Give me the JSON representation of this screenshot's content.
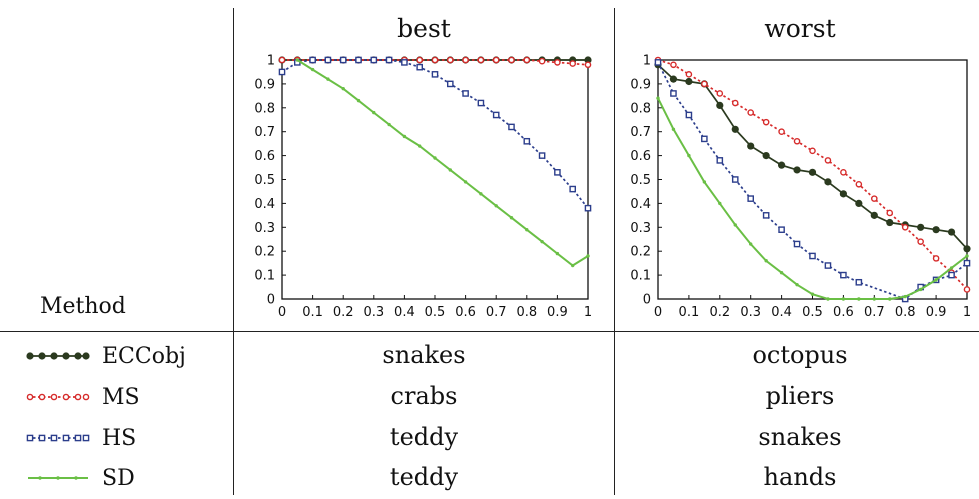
{
  "table": {
    "method_header": "Method",
    "columns": [
      "best",
      "worst"
    ],
    "rows": [
      {
        "method": "ECCobj",
        "best": "snakes",
        "worst": "octopus"
      },
      {
        "method": "MS",
        "best": "crabs",
        "worst": "pliers"
      },
      {
        "method": "HS",
        "best": "teddy",
        "worst": "snakes"
      },
      {
        "method": "SD",
        "best": "teddy",
        "worst": "hands"
      }
    ]
  },
  "styles": {
    "ECCobj": {
      "color": "#2b3a1f",
      "marker": "filled-circle",
      "dash": "solid"
    },
    "MS": {
      "color": "#d62b2b",
      "marker": "open-circle",
      "dash": "dotted"
    },
    "HS": {
      "color": "#2c3e8c",
      "marker": "square",
      "dash": "dotted"
    },
    "SD": {
      "color": "#6abf45",
      "marker": "small-dot",
      "dash": "solid"
    }
  },
  "chart_data": [
    {
      "type": "line",
      "title": "best",
      "xlim": [
        0,
        1
      ],
      "ylim": [
        0,
        1
      ],
      "xticks": [
        "0",
        "0.1",
        "0.2",
        "0.3",
        "0.4",
        "0.5",
        "0.6",
        "0.7",
        "0.8",
        "0.9",
        "1"
      ],
      "yticks": [
        "0",
        "0.1",
        "0.2",
        "0.3",
        "0.4",
        "0.5",
        "0.6",
        "0.7",
        "0.8",
        "0.9",
        "1"
      ],
      "series": [
        {
          "name": "ECCobj",
          "x": [
            0,
            0.05,
            0.1,
            0.15,
            0.2,
            0.25,
            0.3,
            0.35,
            0.4,
            0.45,
            0.5,
            0.55,
            0.6,
            0.65,
            0.7,
            0.75,
            0.8,
            0.85,
            0.9,
            0.95,
            1
          ],
          "y": [
            1,
            1,
            1,
            1,
            1,
            1,
            1,
            1,
            1,
            1,
            1,
            1,
            1,
            1,
            1,
            1,
            1,
            1,
            1,
            1,
            1
          ]
        },
        {
          "name": "MS",
          "x": [
            0,
            0.05,
            0.1,
            0.15,
            0.2,
            0.25,
            0.3,
            0.35,
            0.4,
            0.45,
            0.5,
            0.55,
            0.6,
            0.65,
            0.7,
            0.75,
            0.8,
            0.85,
            0.9,
            0.95,
            1
          ],
          "y": [
            1,
            1,
            1,
            1,
            1,
            1,
            1,
            1,
            1,
            1,
            1,
            1,
            1,
            1,
            1,
            1,
            1,
            0.995,
            0.99,
            0.985,
            0.98
          ]
        },
        {
          "name": "HS",
          "x": [
            0,
            0.05,
            0.1,
            0.15,
            0.2,
            0.25,
            0.3,
            0.35,
            0.4,
            0.45,
            0.5,
            0.55,
            0.6,
            0.65,
            0.7,
            0.75,
            0.8,
            0.85,
            0.9,
            0.95,
            1
          ],
          "y": [
            0.95,
            0.99,
            1,
            1,
            1,
            1,
            1,
            1,
            0.99,
            0.97,
            0.94,
            0.9,
            0.86,
            0.82,
            0.77,
            0.72,
            0.66,
            0.6,
            0.53,
            0.46,
            0.38
          ]
        },
        {
          "name": "SD",
          "x": [
            0.05,
            0.1,
            0.15,
            0.2,
            0.25,
            0.3,
            0.35,
            0.4,
            0.45,
            0.5,
            0.55,
            0.6,
            0.65,
            0.7,
            0.75,
            0.8,
            0.85,
            0.9,
            0.95,
            1
          ],
          "y": [
            1,
            0.96,
            0.92,
            0.88,
            0.83,
            0.78,
            0.73,
            0.68,
            0.64,
            0.59,
            0.54,
            0.49,
            0.44,
            0.39,
            0.34,
            0.29,
            0.24,
            0.19,
            0.14,
            0.18
          ]
        }
      ]
    },
    {
      "type": "line",
      "title": "worst",
      "xlim": [
        0,
        1
      ],
      "ylim": [
        0,
        1
      ],
      "xticks": [
        "0",
        "0.1",
        "0.2",
        "0.3",
        "0.4",
        "0.5",
        "0.6",
        "0.7",
        "0.8",
        "0.9",
        "1"
      ],
      "yticks": [
        "0",
        "0.1",
        "0.2",
        "0.3",
        "0.4",
        "0.5",
        "0.6",
        "0.7",
        "0.8",
        "0.9",
        "1"
      ],
      "series": [
        {
          "name": "ECCobj",
          "x": [
            0,
            0.05,
            0.1,
            0.15,
            0.2,
            0.25,
            0.3,
            0.35,
            0.4,
            0.45,
            0.5,
            0.55,
            0.6,
            0.65,
            0.7,
            0.75,
            0.8,
            0.85,
            0.9,
            0.95,
            1
          ],
          "y": [
            0.98,
            0.92,
            0.91,
            0.9,
            0.81,
            0.71,
            0.64,
            0.6,
            0.56,
            0.54,
            0.53,
            0.49,
            0.44,
            0.4,
            0.35,
            0.32,
            0.31,
            0.3,
            0.29,
            0.28,
            0.21
          ]
        },
        {
          "name": "MS",
          "x": [
            0,
            0.05,
            0.1,
            0.15,
            0.2,
            0.25,
            0.3,
            0.35,
            0.4,
            0.45,
            0.5,
            0.55,
            0.6,
            0.65,
            0.7,
            0.75,
            0.8,
            0.85,
            0.9,
            0.95,
            1
          ],
          "y": [
            1,
            0.98,
            0.94,
            0.9,
            0.86,
            0.82,
            0.78,
            0.74,
            0.7,
            0.66,
            0.62,
            0.58,
            0.53,
            0.48,
            0.42,
            0.36,
            0.3,
            0.24,
            0.17,
            0.11,
            0.04
          ]
        },
        {
          "name": "HS",
          "x": [
            0,
            0.05,
            0.1,
            0.15,
            0.2,
            0.25,
            0.3,
            0.35,
            0.4,
            0.45,
            0.5,
            0.55,
            0.6,
            0.65,
            0.8,
            0.85,
            0.9,
            0.95,
            1
          ],
          "y": [
            0.99,
            0.86,
            0.77,
            0.67,
            0.58,
            0.5,
            0.42,
            0.35,
            0.29,
            0.23,
            0.18,
            0.14,
            0.1,
            0.07,
            0,
            0.05,
            0.08,
            0.1,
            0.15
          ]
        },
        {
          "name": "SD",
          "x": [
            0,
            0.05,
            0.1,
            0.15,
            0.2,
            0.25,
            0.3,
            0.35,
            0.4,
            0.45,
            0.5,
            0.55,
            0.6,
            0.65,
            0.7,
            0.75,
            0.8,
            0.85,
            0.9,
            0.95,
            1
          ],
          "y": [
            0.84,
            0.71,
            0.6,
            0.49,
            0.4,
            0.31,
            0.23,
            0.16,
            0.11,
            0.06,
            0.02,
            0,
            0,
            0,
            0,
            0,
            0.01,
            0.04,
            0.08,
            0.13,
            0.18
          ]
        }
      ]
    }
  ]
}
